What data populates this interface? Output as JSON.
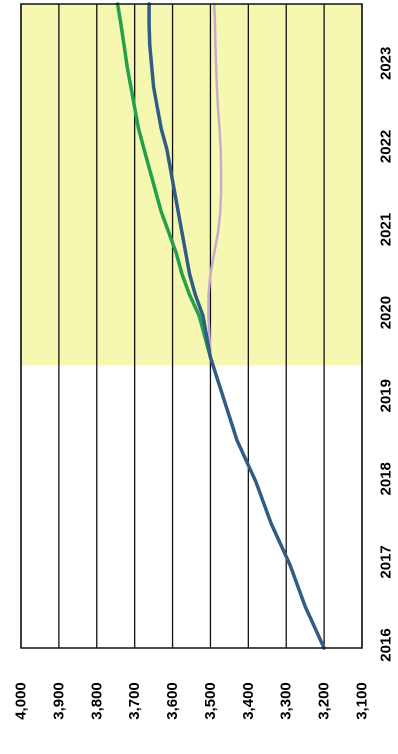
{
  "chart_data": {
    "type": "line",
    "orientation": "rotated-90-clockwise",
    "title": "",
    "xlabel": "",
    "ylabel": "",
    "x": [
      2016,
      2016.5,
      2017,
      2017.5,
      2018,
      2018.5,
      2019,
      2019.5,
      2020,
      2020.25,
      2020.5,
      2020.75,
      2021,
      2021.25,
      2021.5,
      2021.75,
      2022,
      2022.25,
      2022.5,
      2022.75,
      2023,
      2023.25,
      2023.5,
      2023.75
    ],
    "x_ticks": [
      "2016",
      "2017",
      "2018",
      "2019",
      "2020",
      "2021",
      "2022",
      "2023"
    ],
    "x_range": [
      2016,
      2023.75
    ],
    "y_ticks": [
      "3,100",
      "3,200",
      "3,300",
      "3,400",
      "3,500",
      "3,600",
      "3,700",
      "3,800",
      "3,900",
      "4,000"
    ],
    "y_range": [
      3100,
      4000
    ],
    "highlight": {
      "from": 2019.4,
      "to": 2023.75,
      "color": "#f6f7b0"
    },
    "grid": true,
    "series": [
      {
        "color": "#2f5d86",
        "values": [
          3200,
          3250,
          3290,
          3340,
          3380,
          3430,
          3465,
          3500,
          3520,
          3540,
          3555,
          3565,
          3575,
          3585,
          3595,
          3605,
          3615,
          3630,
          3640,
          3650,
          3655,
          3660,
          3662,
          3662
        ]
      },
      {
        "color": "#23a04a",
        "values": [
          null,
          null,
          null,
          null,
          null,
          null,
          null,
          3500,
          3530,
          3555,
          3575,
          3590,
          3610,
          3630,
          3645,
          3660,
          3675,
          3690,
          3700,
          3710,
          3720,
          3728,
          3736,
          3745
        ]
      },
      {
        "color": "#c9a9cc",
        "values": [
          null,
          null,
          null,
          null,
          null,
          null,
          null,
          3500,
          3505,
          3505,
          3500,
          3490,
          3480,
          3474,
          3472,
          3472,
          3473,
          3476,
          3480,
          3483,
          3485,
          3487,
          3488,
          3490
        ]
      }
    ]
  }
}
